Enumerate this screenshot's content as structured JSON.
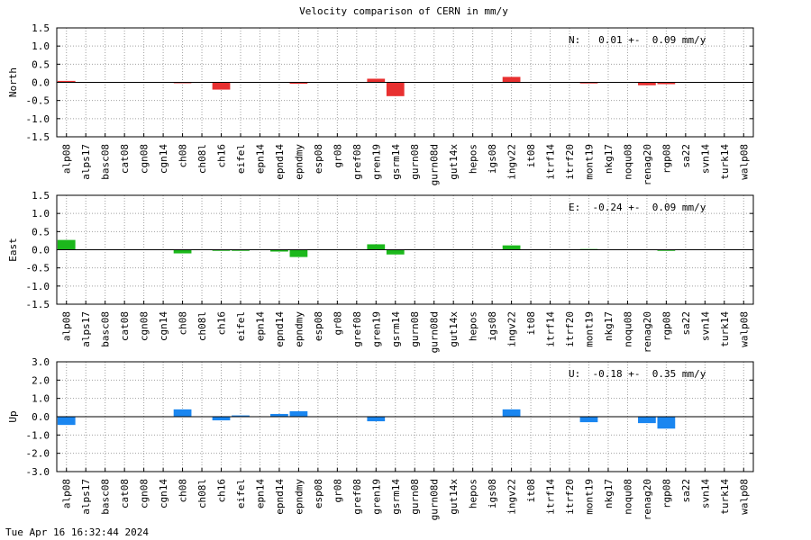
{
  "title": "Velocity comparison of CERN in mm/y",
  "timestamp": "Tue Apr 16 16:32:44 2024",
  "chart_data": [
    {
      "type": "bar",
      "ylabel": "North",
      "ylim": [
        -1.5,
        1.5
      ],
      "yticks": [
        "1.5",
        "1.0",
        "0.5",
        "0.0",
        "-0.5",
        "-1.0",
        "-1.5"
      ],
      "ytick_values": [
        1.5,
        1.0,
        0.5,
        0.0,
        -0.5,
        -1.0,
        -1.5
      ],
      "color": "#e83030",
      "annotation": "N:   0.01 +-  0.09 mm/y",
      "grid": true,
      "categories": [
        "alp08",
        "alps17",
        "basc08",
        "cat08",
        "cgn08",
        "cgn14",
        "ch08",
        "ch08l",
        "ch16",
        "eifel",
        "epn14",
        "epnd14",
        "epndmy",
        "esp08",
        "gr08",
        "gref08",
        "gren19",
        "gsrm14",
        "gurn08",
        "gurn08d",
        "gut14x",
        "hepos",
        "igs08",
        "ingv22",
        "it08",
        "itrf14",
        "itrf20",
        "mont19",
        "nkg17",
        "noqu08",
        "renag20",
        "rgp08",
        "sa22",
        "svn14",
        "turk14",
        "walp08"
      ],
      "values": [
        0.04,
        0,
        0,
        0,
        0,
        0,
        -0.02,
        0,
        -0.2,
        0,
        0,
        0,
        -0.04,
        0,
        0,
        0,
        0.1,
        -0.38,
        0,
        0,
        0,
        0,
        0,
        0.15,
        0,
        0,
        0,
        -0.03,
        0,
        0,
        -0.08,
        -0.05,
        0,
        0,
        0,
        0
      ]
    },
    {
      "type": "bar",
      "ylabel": "East",
      "ylim": [
        -1.5,
        1.5
      ],
      "yticks": [
        "1.5",
        "1.0",
        "0.5",
        "0.0",
        "-0.5",
        "-1.0",
        "-1.5"
      ],
      "ytick_values": [
        1.5,
        1.0,
        0.5,
        0.0,
        -0.5,
        -1.0,
        -1.5
      ],
      "color": "#1cb81c",
      "annotation": "E:  -0.24 +-  0.09 mm/y",
      "grid": true,
      "categories": [
        "alp08",
        "alps17",
        "basc08",
        "cat08",
        "cgn08",
        "cgn14",
        "ch08",
        "ch08l",
        "ch16",
        "eifel",
        "epn14",
        "epnd14",
        "epndmy",
        "esp08",
        "gr08",
        "gref08",
        "gren19",
        "gsrm14",
        "gurn08",
        "gurn08d",
        "gut14x",
        "hepos",
        "igs08",
        "ingv22",
        "it08",
        "itrf14",
        "itrf20",
        "mont19",
        "nkg17",
        "noqu08",
        "renag20",
        "rgp08",
        "sa22",
        "svn14",
        "turk14",
        "walp08"
      ],
      "values": [
        0.27,
        0,
        0,
        0,
        0,
        0,
        -0.1,
        0,
        -0.03,
        -0.03,
        0,
        -0.05,
        -0.2,
        0,
        0,
        0,
        0.15,
        -0.13,
        0,
        0,
        0,
        0,
        0,
        0.12,
        0,
        0,
        0,
        0.02,
        0,
        0,
        0,
        -0.03,
        0,
        0,
        0,
        0
      ]
    },
    {
      "type": "bar",
      "ylabel": "Up",
      "ylim": [
        -3.0,
        3.0
      ],
      "yticks": [
        "3.0",
        "2.0",
        "1.0",
        "0.0",
        "-1.0",
        "-2.0",
        "-3.0"
      ],
      "ytick_values": [
        3.0,
        2.0,
        1.0,
        0.0,
        -1.0,
        -2.0,
        -3.0
      ],
      "color": "#1a86f0",
      "annotation": "U:  -0.18 +-  0.35 mm/y",
      "grid": true,
      "categories": [
        "alp08",
        "alps17",
        "basc08",
        "cat08",
        "cgn08",
        "cgn14",
        "ch08",
        "ch08l",
        "ch16",
        "eifel",
        "epn14",
        "epnd14",
        "epndmy",
        "esp08",
        "gr08",
        "gref08",
        "gren19",
        "gsrm14",
        "gurn08",
        "gurn08d",
        "gut14x",
        "hepos",
        "igs08",
        "ingv22",
        "it08",
        "itrf14",
        "itrf20",
        "mont19",
        "nkg17",
        "noqu08",
        "renag20",
        "rgp08",
        "sa22",
        "svn14",
        "turk14",
        "walp08"
      ],
      "values": [
        -0.45,
        0,
        0,
        0,
        0,
        0,
        0.4,
        0,
        -0.2,
        0.07,
        0,
        0.15,
        0.3,
        0,
        0,
        0,
        -0.25,
        0,
        0,
        0,
        0,
        0,
        0,
        0.4,
        0,
        0,
        0,
        -0.3,
        0,
        0,
        -0.35,
        -0.65,
        0,
        0,
        0,
        0
      ]
    }
  ]
}
